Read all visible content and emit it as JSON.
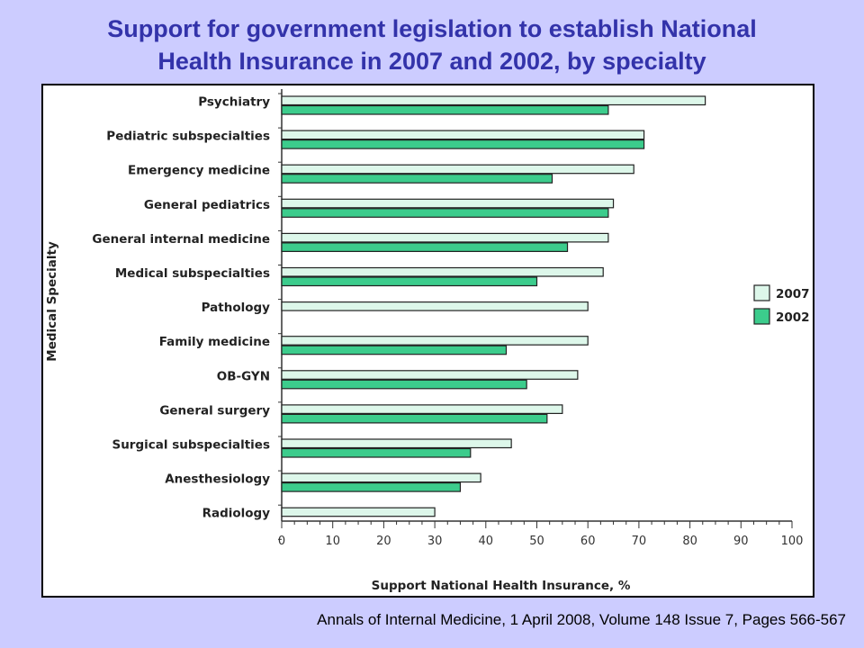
{
  "title_line1": "Support for government legislation to establish National",
  "title_line2": "Health Insurance in 2007 and 2002, by specialty",
  "citation": "Annals of Internal Medicine, 1 April 2008, Volume 148 Issue 7, Pages 566-567",
  "colors": {
    "series_2007": "#ddf7ea",
    "series_2002": "#3ccc8c",
    "background": "#ccccff",
    "title": "#3333aa"
  },
  "chart_data": {
    "type": "bar",
    "orientation": "horizontal",
    "ylabel": "Medical Specialty",
    "xlabel": "Support National Health Insurance, %",
    "xlim": [
      0,
      100
    ],
    "xticks": [
      0,
      10,
      20,
      30,
      40,
      50,
      60,
      70,
      80,
      90,
      100
    ],
    "categories": [
      "Psychiatry",
      "Pediatric subspecialties",
      "Emergency medicine",
      "General pediatrics",
      "General internal medicine",
      "Medical subspecialties",
      "Pathology",
      "Family medicine",
      "OB-GYN",
      "General surgery",
      "Surgical subspecialties",
      "Anesthesiology",
      "Radiology"
    ],
    "series": [
      {
        "name": "2007",
        "values": [
          83,
          71,
          69,
          65,
          64,
          63,
          60,
          60,
          58,
          55,
          45,
          39,
          30
        ]
      },
      {
        "name": "2002",
        "values": [
          64,
          71,
          53,
          64,
          56,
          50,
          null,
          44,
          48,
          52,
          37,
          35,
          null
        ]
      }
    ],
    "legend_position": "right",
    "grid": false
  }
}
